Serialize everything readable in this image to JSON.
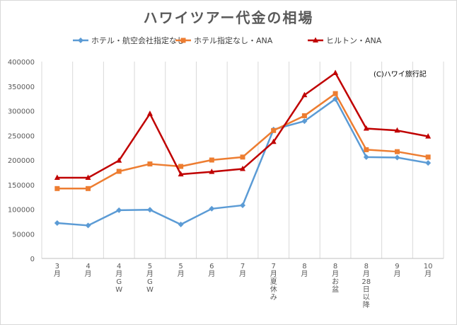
{
  "chart_data": {
    "type": "line",
    "title": "ハワイツアー代金の相場",
    "annotation": "(C)ハワイ旅行記",
    "categories": [
      "3月",
      "4月",
      "4月GW",
      "5月GW",
      "5月",
      "6月",
      "7月",
      "7月夏休み",
      "8月",
      "8月お盆",
      "8月28日以降",
      "9月",
      "10月"
    ],
    "ylim": [
      0,
      400000
    ],
    "yticks": [
      0,
      50000,
      100000,
      150000,
      200000,
      250000,
      300000,
      350000,
      400000
    ],
    "grid": "vertical",
    "legend_position": "top",
    "series": [
      {
        "name": "ホテル・航空会社指定なし",
        "color": "#5B9BD5",
        "marker": "diamond",
        "values": [
          72000,
          67000,
          98000,
          99000,
          69000,
          101000,
          108000,
          262000,
          279000,
          324000,
          206000,
          205000,
          194000
        ]
      },
      {
        "name": "ホテル指定なし・ANA",
        "color": "#ED7D31",
        "marker": "square",
        "values": [
          142000,
          142000,
          177000,
          192000,
          187000,
          200000,
          206000,
          260000,
          290000,
          335000,
          221000,
          217000,
          206000
        ]
      },
      {
        "name": "ヒルトン・ANA",
        "color": "#C00000",
        "marker": "triangle",
        "values": [
          164000,
          164000,
          199000,
          294000,
          171000,
          176000,
          182000,
          237000,
          332000,
          377000,
          264000,
          260000,
          248000
        ]
      }
    ]
  }
}
